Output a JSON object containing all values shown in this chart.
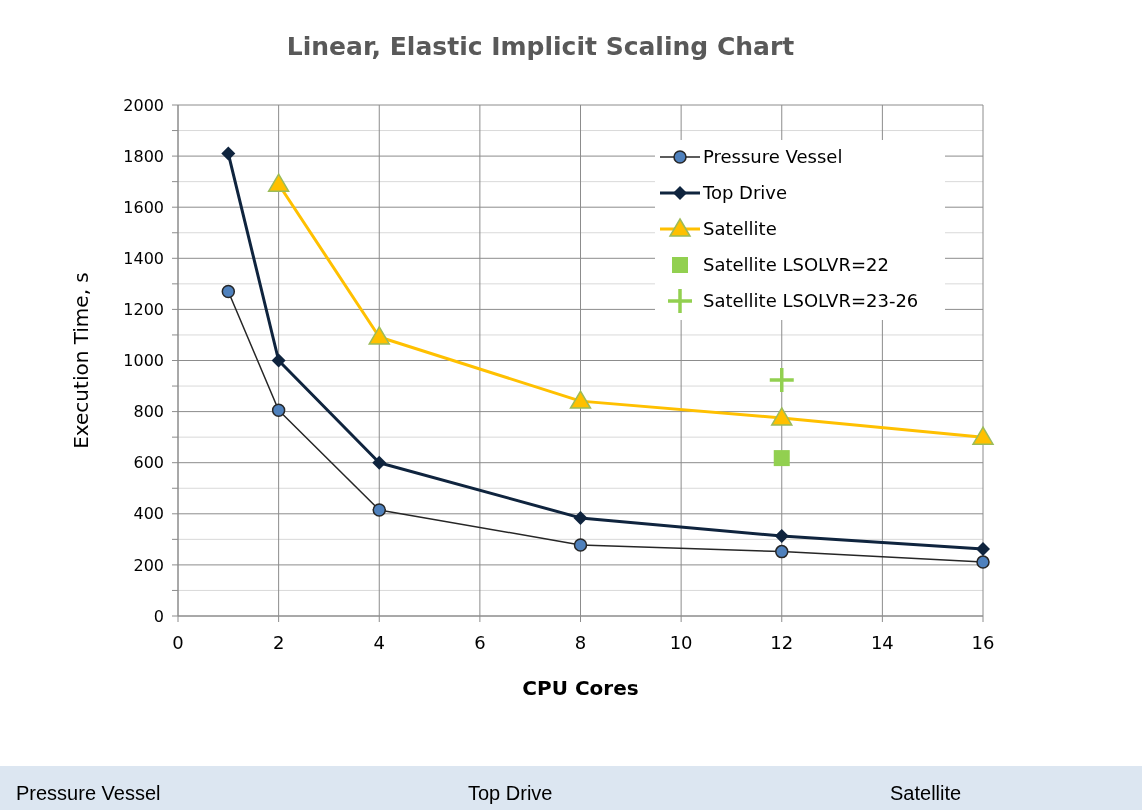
{
  "chart_data": {
    "type": "line",
    "title": "Linear, Elastic Implicit Scaling Chart",
    "xlabel": "CPU Cores",
    "ylabel": "Execution Time, s",
    "x": [
      1,
      2,
      4,
      8,
      12,
      16
    ],
    "series": [
      {
        "name": "Pressure Vessel",
        "color": "#4f81bd",
        "values": [
          1270,
          805,
          415,
          278,
          252,
          211
        ],
        "marker": "circle"
      },
      {
        "name": "Top Drive",
        "color": "#0f243e",
        "values": [
          1810,
          1000,
          600,
          384,
          313,
          262
        ],
        "marker": "diamond"
      },
      {
        "name": "Satellite",
        "color": "#ffc000",
        "values": [
          null,
          1690,
          1092,
          841,
          775,
          700
        ],
        "marker": "triangle"
      },
      {
        "name": "Satellite LSOLVR=22",
        "type": "scatter",
        "color": "#92d050",
        "x": [
          12
        ],
        "values": [
          618
        ],
        "marker": "square"
      },
      {
        "name": "Satellite LSOLVR=23-26",
        "type": "scatter",
        "color": "#92d050",
        "x": [
          12
        ],
        "values": [
          924
        ],
        "marker": "cross"
      }
    ],
    "xlim": [
      0,
      16
    ],
    "xticks": [
      0,
      2,
      4,
      6,
      8,
      10,
      12,
      14,
      16
    ],
    "ylim": [
      0,
      2000
    ],
    "yticks": [
      0,
      {
        "value": 100,
        "label": null
      },
      200,
      {
        "value": 300,
        "label": null
      },
      400,
      {
        "value": 500,
        "label": null
      },
      600,
      {
        "value": 700,
        "label": null
      },
      800,
      {
        "value": 900,
        "label": null
      },
      1000,
      {
        "value": 1100,
        "label": null
      },
      1200,
      {
        "value": 1300,
        "label": null
      },
      1400,
      {
        "value": 1500,
        "label": null
      },
      1600,
      {
        "value": 1700,
        "label": null
      },
      1800,
      {
        "value": 1900,
        "label": null
      },
      2000
    ],
    "grid": true,
    "legend": "top right",
    "annotations": [
      "Pressure Vessel",
      "Top Drive",
      "Satellite"
    ]
  }
}
